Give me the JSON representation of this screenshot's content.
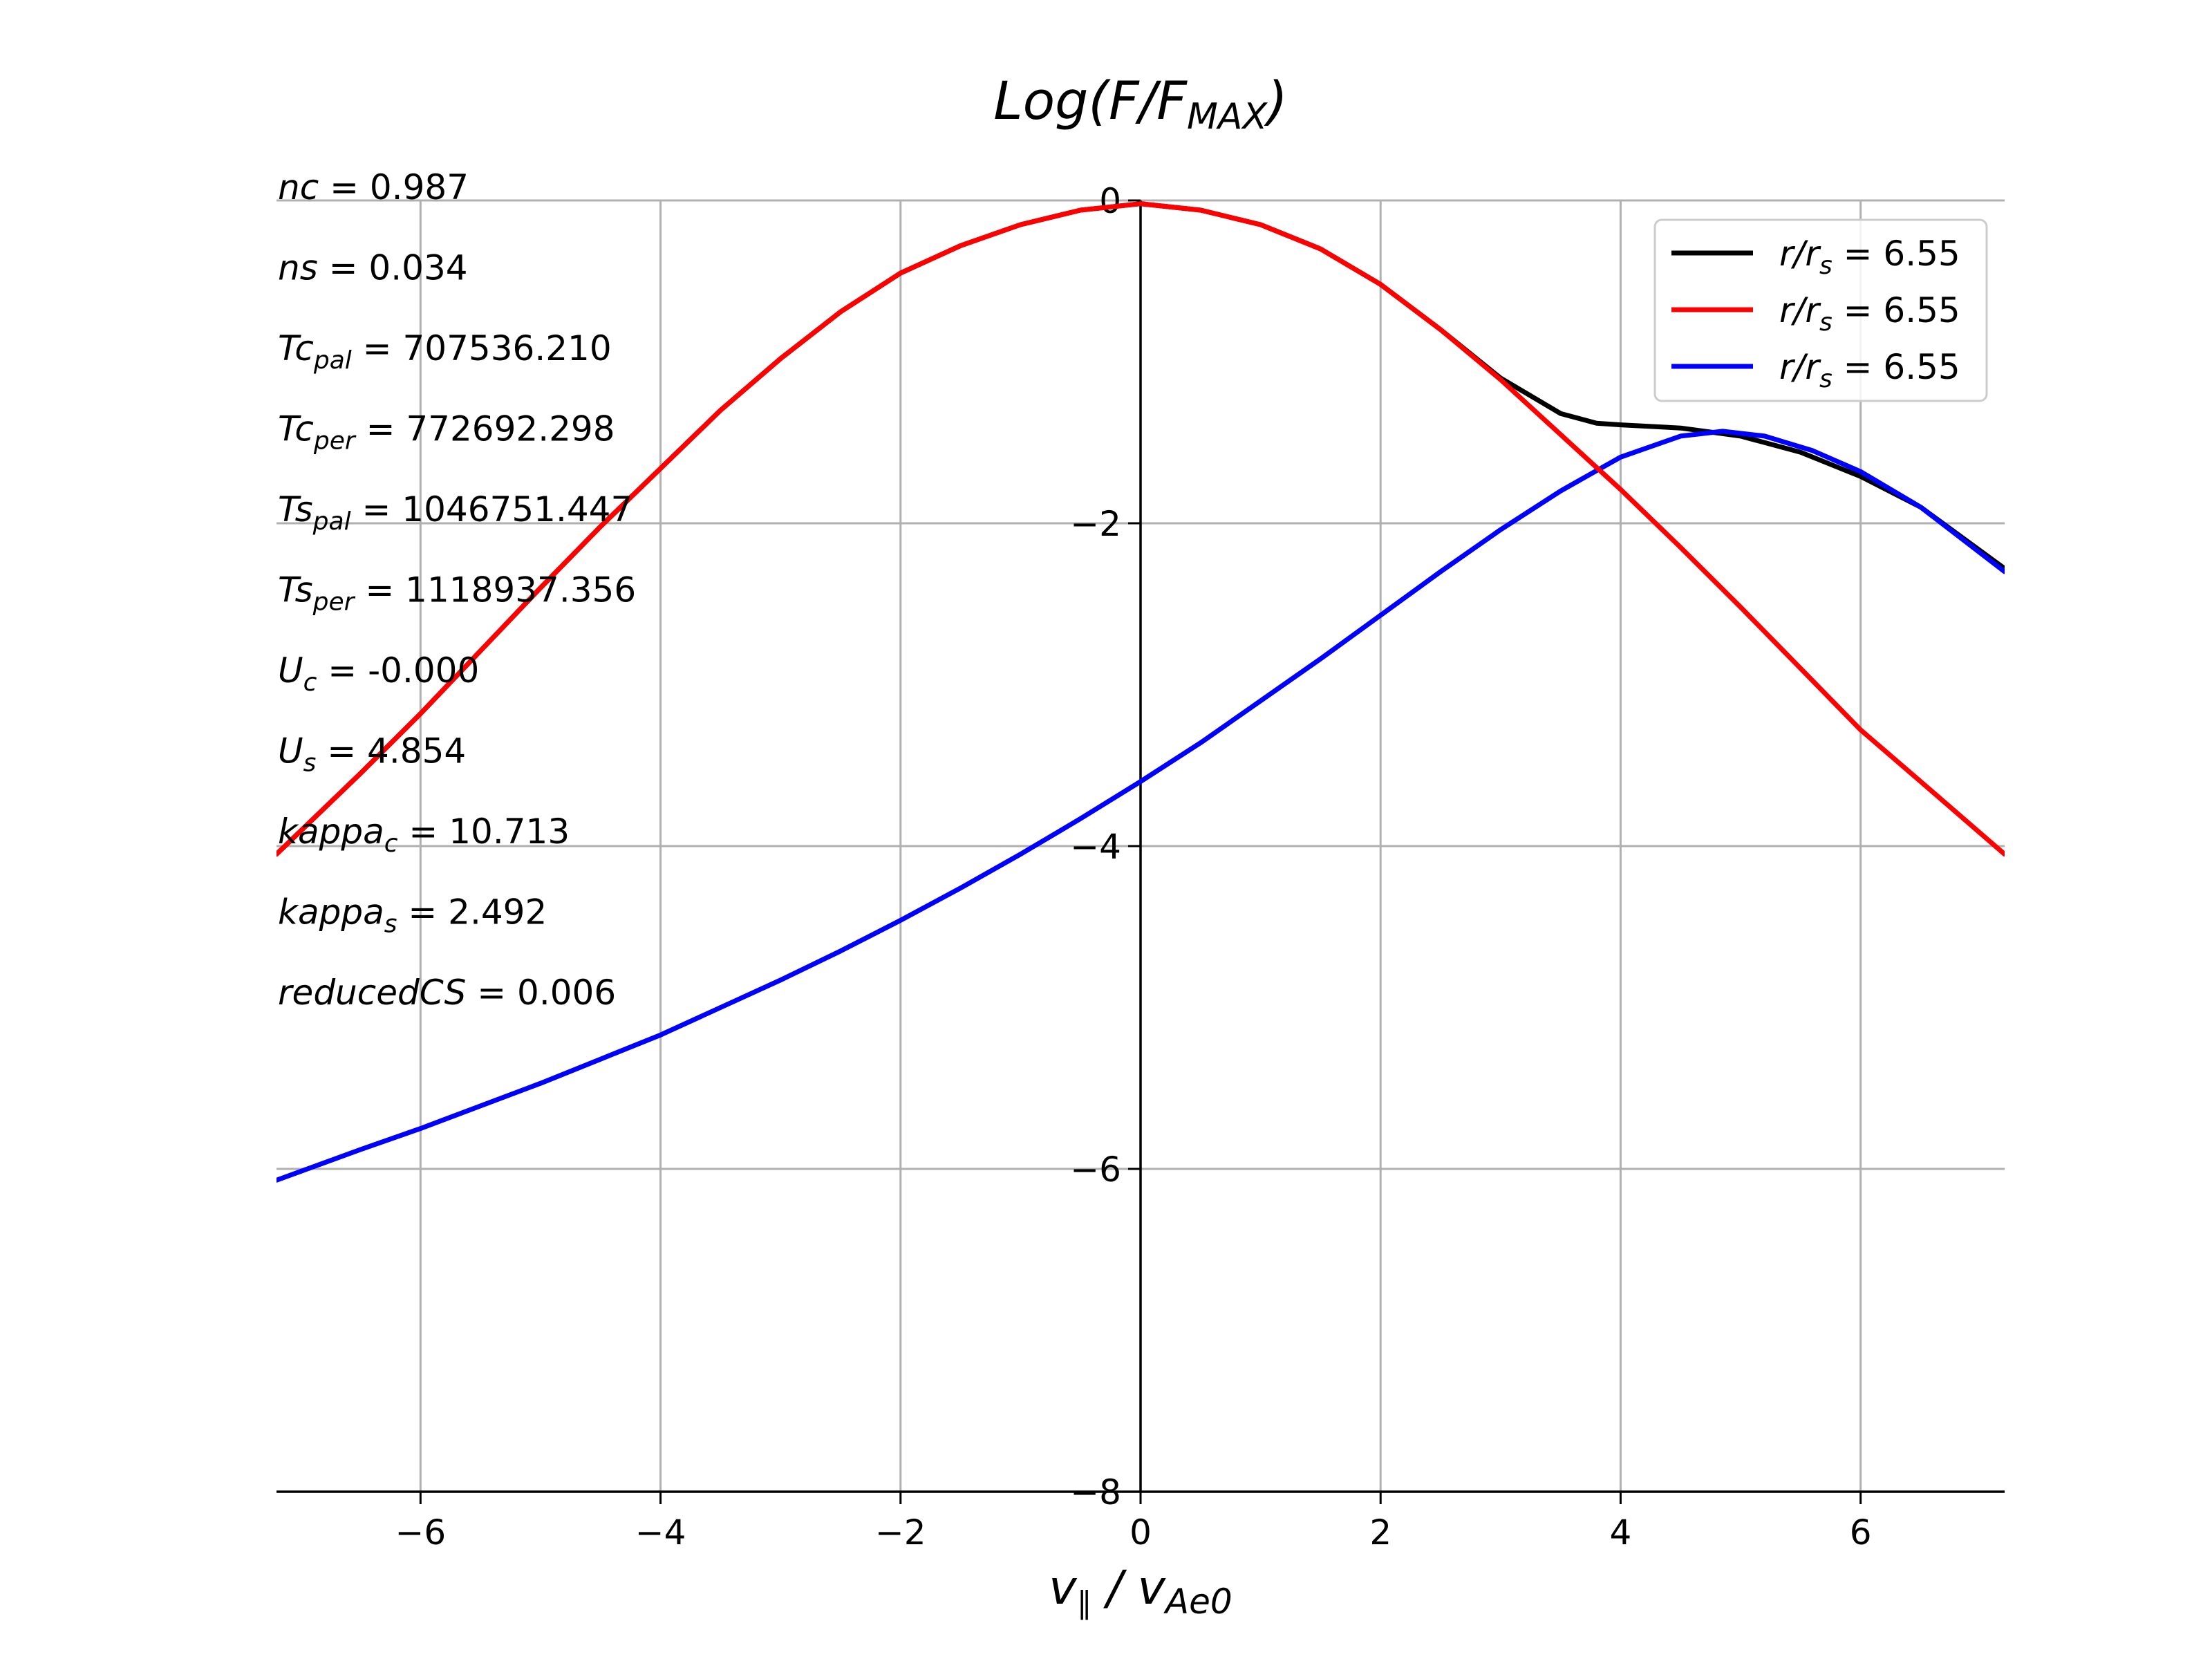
{
  "chart_data": {
    "type": "line",
    "title": "Log(F/F_MAX)",
    "xlabel": "v_∥ / v_Ae0",
    "ylabel": "",
    "xlim": [
      -7.2,
      7.2
    ],
    "ylim": [
      -8,
      0
    ],
    "x_ticks": [
      {
        "value": -6,
        "label": "−6"
      },
      {
        "value": -4,
        "label": "−4"
      },
      {
        "value": -2,
        "label": "−2"
      },
      {
        "value": 0,
        "label": "0"
      },
      {
        "value": 2,
        "label": "2"
      },
      {
        "value": 4,
        "label": "4"
      },
      {
        "value": 6,
        "label": "6"
      }
    ],
    "y_ticks": [
      {
        "value": 0,
        "label": "0"
      },
      {
        "value": -2,
        "label": "−2"
      },
      {
        "value": -4,
        "label": "−4"
      },
      {
        "value": -6,
        "label": "−6"
      },
      {
        "value": -8,
        "label": "−8"
      }
    ],
    "grid": true,
    "legend_position": "top-right",
    "parameters": [
      {
        "name": "nc",
        "sub": "",
        "value": "0.987"
      },
      {
        "name": "ns",
        "sub": "",
        "value": "0.034"
      },
      {
        "name": "Tc",
        "sub": "pal",
        "value": "707536.210"
      },
      {
        "name": "Tc",
        "sub": "per",
        "value": "772692.298"
      },
      {
        "name": "Ts",
        "sub": "pal",
        "value": "1046751.447"
      },
      {
        "name": "Ts",
        "sub": "per",
        "value": "1118937.356"
      },
      {
        "name": "U",
        "sub": "c",
        "value": "-0.000"
      },
      {
        "name": "U",
        "sub": "s",
        "value": "4.854"
      },
      {
        "name": "kappa",
        "sub": "c",
        "value": "10.713"
      },
      {
        "name": "kappa",
        "sub": "s",
        "value": "2.492"
      },
      {
        "name": "reducedCS",
        "sub": "",
        "value": "0.006"
      }
    ],
    "series": [
      {
        "name": "r/r_s = 6.55",
        "color": "#000000",
        "x": [
          -7.2,
          -6.5,
          -6,
          -5.5,
          -5,
          -4.5,
          -4,
          -3.5,
          -3,
          -2.5,
          -2,
          -1.5,
          -1,
          -0.5,
          0,
          0.5,
          1,
          1.5,
          2,
          2.5,
          3,
          3.5,
          3.8,
          4,
          4.5,
          5,
          5.5,
          6,
          6.5,
          7.2
        ],
        "y": [
          -4.05,
          -3.55,
          -3.18,
          -2.79,
          -2.4,
          -2.02,
          -1.66,
          -1.3,
          -0.98,
          -0.69,
          -0.45,
          -0.28,
          -0.15,
          -0.06,
          -0.02,
          -0.06,
          -0.15,
          -0.3,
          -0.52,
          -0.8,
          -1.1,
          -1.32,
          -1.38,
          -1.39,
          -1.41,
          -1.46,
          -1.56,
          -1.71,
          -1.9,
          -2.28
        ]
      },
      {
        "name": "r/r_s = 6.55",
        "color": "#ff0000",
        "x": [
          -7.2,
          -6.5,
          -6,
          -5.5,
          -5,
          -4.5,
          -4,
          -3.5,
          -3,
          -2.5,
          -2,
          -1.5,
          -1,
          -0.5,
          0,
          0.5,
          1,
          1.5,
          2,
          2.5,
          3,
          3.5,
          4,
          4.5,
          5,
          5.5,
          6,
          6.5,
          7.2
        ],
        "y": [
          -4.05,
          -3.55,
          -3.18,
          -2.79,
          -2.4,
          -2.02,
          -1.66,
          -1.3,
          -0.98,
          -0.69,
          -0.45,
          -0.28,
          -0.15,
          -0.06,
          -0.02,
          -0.06,
          -0.15,
          -0.3,
          -0.52,
          -0.8,
          -1.11,
          -1.45,
          -1.79,
          -2.15,
          -2.52,
          -2.9,
          -3.28,
          -3.6,
          -4.05
        ]
      },
      {
        "name": "r/r_s = 6.55",
        "color": "#0000ff",
        "x": [
          -7.2,
          -6.5,
          -6,
          -5.5,
          -5,
          -4.5,
          -4,
          -3.5,
          -3,
          -2.5,
          -2,
          -1.5,
          -1,
          -0.5,
          0,
          0.5,
          1,
          1.5,
          2,
          2.5,
          3,
          3.5,
          4,
          4.5,
          4.85,
          5.2,
          5.6,
          6,
          6.5,
          7.2
        ],
        "y": [
          -6.07,
          -5.88,
          -5.75,
          -5.61,
          -5.47,
          -5.32,
          -5.17,
          -5.0,
          -4.83,
          -4.65,
          -4.46,
          -4.26,
          -4.05,
          -3.83,
          -3.6,
          -3.36,
          -3.1,
          -2.84,
          -2.57,
          -2.3,
          -2.04,
          -1.8,
          -1.59,
          -1.46,
          -1.43,
          -1.46,
          -1.55,
          -1.68,
          -1.9,
          -2.3
        ]
      }
    ]
  }
}
